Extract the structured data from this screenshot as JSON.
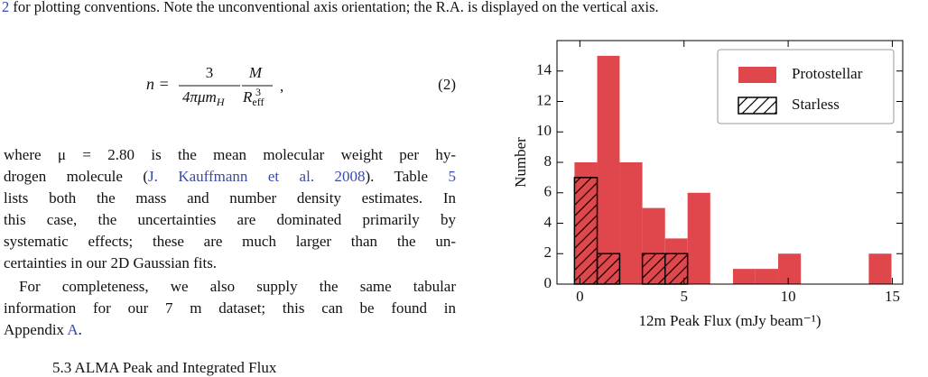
{
  "top_caption": [
    {
      "text": "2",
      "link": true
    },
    " for plotting conventions. Note the unconventional axis orientation; the R.A. is displayed on the vertical axis."
  ],
  "equation": {
    "lhs": "n =",
    "num1": "3",
    "den1": "4πμm",
    "den1_sub": "H",
    "num2": "M",
    "den2": "R",
    "den2_sub": "eff",
    "den2_sup": "3",
    "comma": ",",
    "number": "(2)"
  },
  "paragraphs": [
    [
      [
        "where μ = 2.80 is the mean molecular weight per hy-"
      ],
      [
        "drogen molecule (",
        {
          "text": "J. Kauffmann et al. 2008",
          "link": true
        },
        ").  Table ",
        {
          "text": "5",
          "link": true
        }
      ],
      [
        "lists both the mass and number density estimates. In"
      ],
      [
        "this case, the uncertainties are dominated primarily by"
      ],
      [
        "systematic effects; these are much larger than the un-"
      ],
      [
        "certainties in our 2D Gaussian fits."
      ]
    ],
    [
      [
        "For completeness, we also supply the same tabular"
      ],
      [
        "information for our 7 m dataset; this can be found in"
      ],
      [
        "Appendix ",
        {
          "text": "A",
          "link": true
        },
        "."
      ]
    ]
  ],
  "section_heading": "5.3  ALMA Peak and Integrated Flux",
  "chart_data": {
    "type": "histogram",
    "xlabel": "12m Peak Flux (mJy beam⁻¹)",
    "ylabel": "Number",
    "bins": [
      -0.26,
      0.83,
      1.91,
      3.0,
      4.09,
      5.17,
      6.26,
      7.35,
      8.43,
      9.52,
      10.61,
      11.7,
      12.78,
      13.87,
      14.96
    ],
    "series": [
      {
        "name": "Protostellar",
        "color": "#e0474c",
        "values": [
          8,
          15,
          8,
          5,
          3,
          6,
          0,
          1,
          1,
          2,
          0,
          0,
          0,
          2
        ]
      },
      {
        "name": "Starless",
        "color": "#000000",
        "hatch": true,
        "values": [
          7,
          2,
          0,
          2,
          2,
          0,
          0,
          0,
          0,
          0,
          0,
          0,
          0,
          0
        ]
      }
    ],
    "xlim": [
      -1.1,
      15.5
    ],
    "ylim": [
      0,
      16
    ],
    "xticks": [
      0,
      5,
      10,
      15
    ],
    "yticks": [
      0,
      2,
      4,
      6,
      8,
      10,
      12,
      14
    ],
    "legend": "upper right"
  }
}
